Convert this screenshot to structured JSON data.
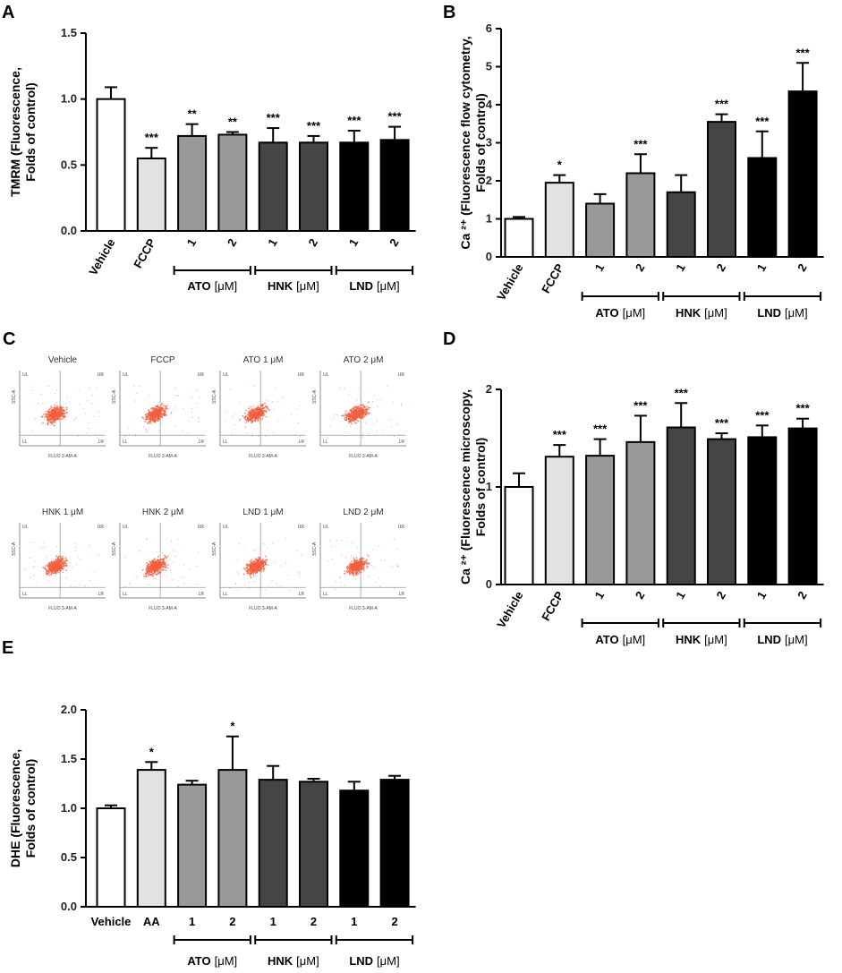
{
  "panel_labels": [
    "A",
    "B",
    "C",
    "D",
    "E"
  ],
  "colors": {
    "white": "#ffffff",
    "light_gray": "#e2e2e2",
    "mid_gray": "#999999",
    "dark_gray": "#454545",
    "black": "#000000",
    "scatter_red": "#f06040"
  },
  "chart_data": [
    {
      "id": "A",
      "type": "bar",
      "ylabel_lines": [
        "TMRM (Fluorescence,",
        "Folds of control)"
      ],
      "ylim": [
        0,
        1.5
      ],
      "yticks": [
        "0.0",
        "0.5",
        "1.0",
        "1.5"
      ],
      "categories": [
        "Vehicle",
        "FCCP",
        "1",
        "2",
        "1",
        "2",
        "1",
        "2"
      ],
      "values": [
        1.0,
        0.55,
        0.72,
        0.73,
        0.67,
        0.67,
        0.67,
        0.69
      ],
      "errors": [
        0.09,
        0.08,
        0.09,
        0.02,
        0.11,
        0.05,
        0.09,
        0.1
      ],
      "significance": [
        "",
        "***",
        "**",
        "**",
        "***",
        "***",
        "***",
        "***"
      ],
      "groups": [
        {
          "name": "ATO",
          "unit": "[μM]"
        },
        {
          "name": "HNK",
          "unit": "[μM]"
        },
        {
          "name": "LND",
          "unit": "[μM]"
        }
      ]
    },
    {
      "id": "B",
      "type": "bar",
      "ylabel_lines": [
        "Ca ²⁺ (Fluorescence flow cytometry,",
        "Folds of control)"
      ],
      "ylim": [
        0,
        6
      ],
      "yticks": [
        "0",
        "1",
        "2",
        "3",
        "4",
        "5",
        "6"
      ],
      "categories": [
        "Vehicle",
        "FCCP",
        "1",
        "2",
        "1",
        "2",
        "1",
        "2"
      ],
      "values": [
        1.0,
        1.95,
        1.4,
        2.2,
        1.7,
        3.55,
        2.6,
        4.35
      ],
      "errors": [
        0.05,
        0.2,
        0.25,
        0.5,
        0.45,
        0.2,
        0.7,
        0.75
      ],
      "significance": [
        "",
        "*",
        "",
        "***",
        "",
        "***",
        "***",
        "***"
      ],
      "groups": [
        {
          "name": "ATO",
          "unit": "[μM]"
        },
        {
          "name": "HNK",
          "unit": "[μM]"
        },
        {
          "name": "LND",
          "unit": "[μM]"
        }
      ]
    },
    {
      "id": "D",
      "type": "bar",
      "ylabel_lines": [
        "Ca ²⁺ (Fluorescence microscopy,",
        "Folds of control)"
      ],
      "ylim": [
        0,
        2
      ],
      "yticks": [
        "0",
        "1",
        "2"
      ],
      "categories": [
        "Vehicle",
        "FCCP",
        "1",
        "2",
        "1",
        "2",
        "1",
        "2"
      ],
      "values": [
        1.0,
        1.31,
        1.32,
        1.46,
        1.61,
        1.49,
        1.51,
        1.6
      ],
      "errors": [
        0.14,
        0.12,
        0.17,
        0.27,
        0.25,
        0.06,
        0.12,
        0.1
      ],
      "significance": [
        "",
        "***",
        "***",
        "***",
        "***",
        "***",
        "***",
        "***"
      ],
      "groups": [
        {
          "name": "ATO",
          "unit": "[μM]"
        },
        {
          "name": "HNK",
          "unit": "[μM]"
        },
        {
          "name": "LND",
          "unit": "[μM]"
        }
      ]
    },
    {
      "id": "E",
      "type": "bar",
      "ylabel_lines": [
        "DHE (Fluorescence,",
        "Folds of control)"
      ],
      "ylim": [
        0,
        2.0
      ],
      "yticks": [
        "0.0",
        "0.5",
        "1.0",
        "1.5",
        "2.0"
      ],
      "categories": [
        "Vehicle",
        "AA",
        "1",
        "2",
        "1",
        "2",
        "1",
        "2"
      ],
      "values": [
        1.0,
        1.39,
        1.24,
        1.39,
        1.29,
        1.27,
        1.18,
        1.29
      ],
      "errors": [
        0.03,
        0.08,
        0.04,
        0.34,
        0.14,
        0.03,
        0.09,
        0.04
      ],
      "significance": [
        "",
        "*",
        "",
        "*",
        "",
        "",
        "",
        ""
      ],
      "groups": [
        {
          "name": "ATO",
          "unit": "[μM]"
        },
        {
          "name": "HNK",
          "unit": "[μM]"
        },
        {
          "name": "LND",
          "unit": "[μM]"
        }
      ]
    }
  ],
  "flow_panel": {
    "plots": [
      {
        "title": "Vehicle"
      },
      {
        "title": "FCCP"
      },
      {
        "title": "ATO 1 μM"
      },
      {
        "title": "ATO 2 μM"
      },
      {
        "title": "HNK 1 μM"
      },
      {
        "title": "HNK 2 μM"
      },
      {
        "title": "LND 1 μM"
      },
      {
        "title": "LND 2 μM"
      }
    ],
    "quadrants": [
      "UL",
      "UR",
      "LL",
      "LR"
    ],
    "xaxis_label": "FLUO 3-AM-A",
    "yaxis_label": "SSC-A"
  }
}
